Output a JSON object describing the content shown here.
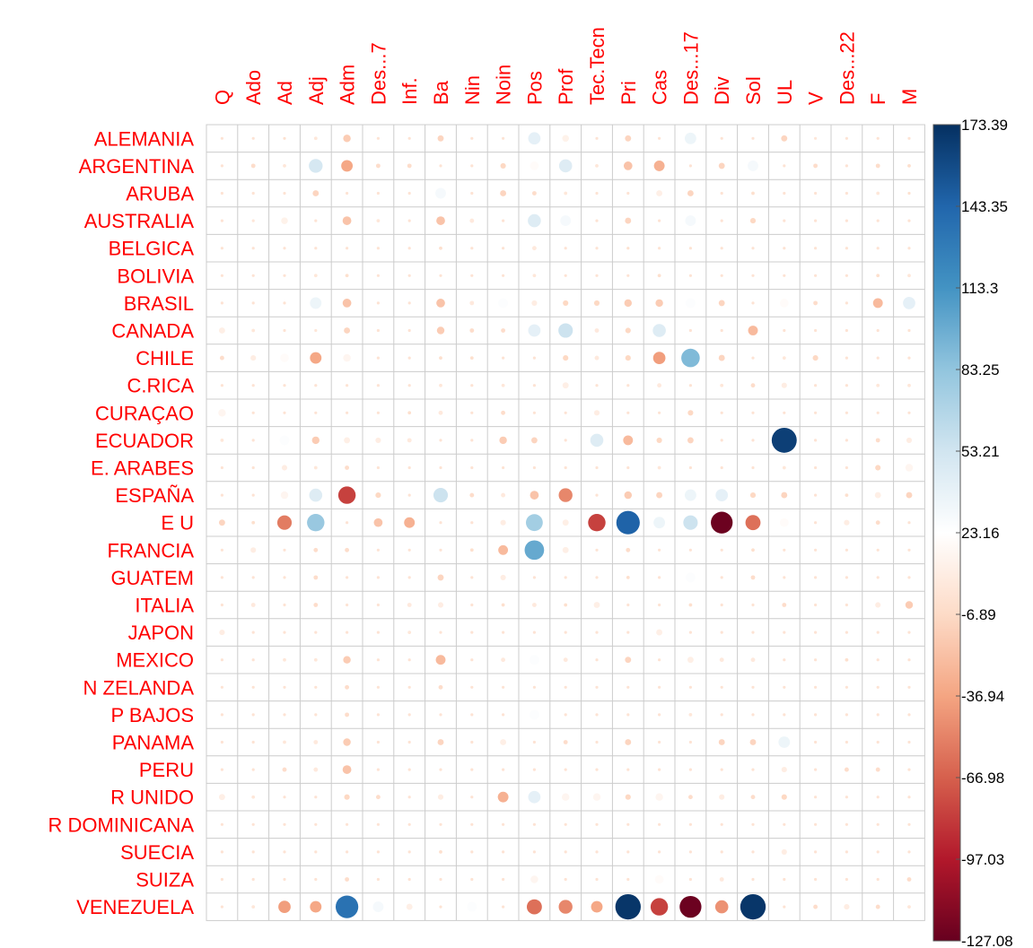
{
  "chart_data": {
    "type": "heatmap",
    "subtype": "corrplot-circle",
    "columns": [
      "Q",
      "Ado",
      "Ad",
      "Adj",
      "Adm",
      "Des...7",
      "Inf.",
      "Ba",
      "Nin",
      "Noin",
      "Pos",
      "Prof",
      "Tec.Tecn",
      "Pri",
      "Cas",
      "Des...17",
      "Div",
      "Sol",
      "UL",
      "V",
      "Des...22",
      "F",
      "M"
    ],
    "rows": [
      "ALEMANIA",
      "ARGENTINA",
      "ARUBA",
      "AUSTRALIA",
      "BELGICA",
      "BOLIVIA",
      "BRASIL",
      "CANADA",
      "CHILE",
      "C.RICA",
      "CURAÇAO",
      "ECUADOR",
      "E. ARABES",
      "ESPAÑA",
      "E U",
      "FRANCIA",
      "GUATEM",
      "ITALIA",
      "JAPON",
      "MEXICO",
      "N ZELANDA",
      "P BAJOS",
      "PANAMA",
      "PERU",
      "R UNIDO",
      "R DOMINICANA",
      "SUECIA",
      "SUIZA",
      "VENEZUELA"
    ],
    "values": [
      [
        0,
        0,
        -2,
        3,
        -15,
        0,
        0,
        -10,
        0,
        0,
        40,
        12,
        0,
        -10,
        0,
        35,
        0,
        0,
        -10,
        2,
        0,
        0,
        0
      ],
      [
        0,
        -5,
        3,
        50,
        -35,
        -5,
        -5,
        0,
        0,
        -8,
        20,
        45,
        3,
        -20,
        -30,
        0,
        -10,
        30,
        0,
        -5,
        0,
        -5,
        -3
      ],
      [
        0,
        0,
        0,
        -10,
        0,
        0,
        0,
        30,
        0,
        -10,
        -5,
        3,
        0,
        0,
        10,
        -10,
        0,
        -3,
        0,
        0,
        0,
        3,
        -2
      ],
      [
        0,
        2,
        12,
        0,
        -20,
        3,
        0,
        -20,
        5,
        0,
        45,
        30,
        0,
        -10,
        0,
        30,
        0,
        -8,
        0,
        0,
        0,
        0,
        0
      ],
      [
        0,
        0,
        0,
        0,
        0,
        0,
        0,
        -3,
        0,
        0,
        5,
        0,
        0,
        -2,
        0,
        0,
        0,
        0,
        0,
        0,
        0,
        0,
        0
      ],
      [
        0,
        0,
        0,
        3,
        -3,
        0,
        0,
        0,
        0,
        0,
        3,
        0,
        0,
        0,
        -3,
        0,
        0,
        0,
        0,
        0,
        0,
        -3,
        3
      ],
      [
        0,
        0,
        0,
        35,
        -20,
        0,
        0,
        -20,
        5,
        25,
        8,
        -8,
        -8,
        -15,
        -15,
        25,
        -10,
        0,
        20,
        -5,
        0,
        -25,
        40
      ],
      [
        10,
        3,
        0,
        2,
        -10,
        0,
        0,
        -15,
        -5,
        -5,
        40,
        55,
        5,
        -8,
        45,
        0,
        0,
        -25,
        0,
        0,
        0,
        0,
        0
      ],
      [
        -5,
        8,
        20,
        -35,
        15,
        0,
        0,
        -3,
        -3,
        0,
        0,
        -8,
        5,
        -8,
        -40,
        90,
        -10,
        0,
        3,
        -8,
        0,
        0,
        0
      ],
      [
        0,
        0,
        0,
        0,
        0,
        0,
        0,
        3,
        0,
        3,
        0,
        10,
        0,
        0,
        5,
        0,
        3,
        -5,
        8,
        0,
        0,
        3,
        3
      ],
      [
        15,
        0,
        0,
        0,
        0,
        0,
        -3,
        5,
        0,
        -5,
        0,
        0,
        8,
        0,
        0,
        -8,
        0,
        0,
        0,
        0,
        0,
        0,
        0
      ],
      [
        3,
        0,
        25,
        -15,
        10,
        8,
        5,
        0,
        0,
        -15,
        -10,
        0,
        45,
        -25,
        -8,
        -10,
        0,
        0,
        165,
        0,
        0,
        -5,
        8
      ],
      [
        0,
        0,
        8,
        3,
        -5,
        0,
        0,
        0,
        0,
        0,
        0,
        0,
        0,
        0,
        3,
        0,
        0,
        0,
        3,
        0,
        0,
        -8,
        15
      ],
      [
        0,
        0,
        15,
        45,
        -80,
        -8,
        0,
        55,
        -5,
        5,
        -20,
        -50,
        0,
        -15,
        -10,
        35,
        40,
        -8,
        -10,
        0,
        -3,
        10,
        -10
      ],
      [
        -10,
        -3,
        -55,
        80,
        0,
        -20,
        -30,
        0,
        0,
        8,
        75,
        10,
        -80,
        145,
        35,
        55,
        -125,
        -60,
        20,
        0,
        8,
        -5,
        0
      ],
      [
        0,
        8,
        0,
        -5,
        -5,
        0,
        0,
        0,
        -3,
        -25,
        100,
        10,
        0,
        -5,
        0,
        0,
        0,
        -3,
        0,
        0,
        0,
        0,
        0
      ],
      [
        0,
        0,
        0,
        -5,
        0,
        0,
        0,
        -10,
        0,
        8,
        0,
        0,
        0,
        -3,
        0,
        25,
        0,
        -5,
        0,
        0,
        0,
        0,
        0
      ],
      [
        0,
        5,
        0,
        -5,
        0,
        0,
        5,
        8,
        0,
        -3,
        5,
        -3,
        10,
        0,
        0,
        -3,
        0,
        0,
        -5,
        0,
        0,
        8,
        -15
      ],
      [
        8,
        0,
        0,
        0,
        0,
        0,
        3,
        0,
        0,
        0,
        0,
        0,
        0,
        0,
        10,
        0,
        0,
        0,
        0,
        0,
        0,
        0,
        0
      ],
      [
        0,
        0,
        3,
        3,
        -15,
        0,
        0,
        -25,
        0,
        5,
        25,
        5,
        0,
        -10,
        0,
        10,
        5,
        5,
        0,
        0,
        -3,
        0,
        0
      ],
      [
        0,
        0,
        0,
        0,
        -5,
        0,
        0,
        -5,
        0,
        0,
        0,
        0,
        0,
        0,
        0,
        0,
        0,
        0,
        0,
        0,
        0,
        0,
        0
      ],
      [
        0,
        0,
        0,
        0,
        -5,
        0,
        0,
        0,
        0,
        0,
        25,
        0,
        0,
        0,
        0,
        3,
        0,
        0,
        0,
        0,
        0,
        0,
        0
      ],
      [
        0,
        0,
        3,
        5,
        -15,
        0,
        0,
        -10,
        0,
        10,
        0,
        -5,
        0,
        -10,
        0,
        0,
        -10,
        -10,
        35,
        0,
        0,
        0,
        0
      ],
      [
        0,
        0,
        -5,
        5,
        -20,
        0,
        0,
        0,
        0,
        0,
        0,
        0,
        0,
        0,
        0,
        0,
        0,
        0,
        8,
        0,
        -5,
        -5,
        0
      ],
      [
        10,
        3,
        0,
        0,
        -8,
        -5,
        0,
        8,
        0,
        -30,
        40,
        15,
        15,
        -8,
        15,
        -5,
        8,
        -5,
        -8,
        0,
        0,
        0,
        0
      ],
      [
        0,
        0,
        0,
        0,
        0,
        0,
        0,
        0,
        0,
        0,
        0,
        0,
        0,
        0,
        0,
        0,
        0,
        0,
        0,
        0,
        0,
        0,
        0
      ],
      [
        0,
        0,
        0,
        0,
        0,
        0,
        0,
        -3,
        0,
        0,
        0,
        0,
        0,
        0,
        0,
        0,
        0,
        0,
        8,
        0,
        0,
        0,
        0
      ],
      [
        0,
        0,
        0,
        0,
        -5,
        0,
        0,
        0,
        0,
        0,
        15,
        0,
        0,
        0,
        20,
        0,
        5,
        0,
        0,
        0,
        0,
        0,
        -5
      ],
      [
        0,
        3,
        -40,
        -35,
        135,
        30,
        10,
        0,
        25,
        0,
        -60,
        -50,
        -35,
        170,
        -80,
        -125,
        -45,
        170,
        0,
        -5,
        8,
        -5,
        3
      ]
    ],
    "range": [
      -127.08,
      173.39
    ],
    "legend": {
      "position": "right",
      "tick_labels": [
        "173.39",
        "143.35",
        "113.3",
        "83.25",
        "53.21",
        "23.16",
        "-6.89",
        "-36.94",
        "-66.98",
        "-97.03",
        "-127.08"
      ],
      "stops": [
        "#67001f",
        "#b2182b",
        "#d6604d",
        "#f4a582",
        "#fddbc7",
        "#ffffff",
        "#d1e5f0",
        "#92c5de",
        "#4393c3",
        "#2166ac",
        "#053061"
      ]
    },
    "label_color": "#ff0000",
    "grid_color": "#cccccc",
    "grid": true
  }
}
